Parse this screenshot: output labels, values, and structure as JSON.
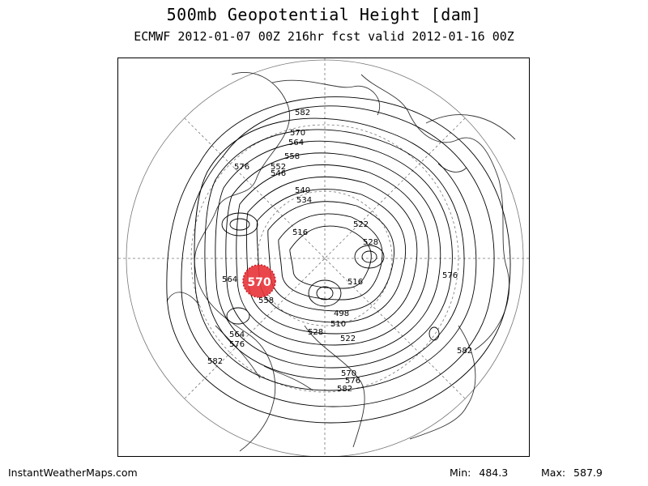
{
  "header": {
    "title": "500mb Geopotential Height [dam]",
    "subtitle": "ECMWF 2012-01-07 00Z 216hr fcst valid 2012-01-16 00Z"
  },
  "footer": {
    "site": "InstantWeatherMaps.com",
    "min_label": "Min:",
    "min_value": "484.3",
    "max_label": "Max:",
    "max_value": "587.9"
  },
  "highlight": {
    "value": "570",
    "color": "#e8333a"
  },
  "contour_labels": [
    "582",
    "570",
    "564",
    "558",
    "552",
    "546",
    "540",
    "534",
    "576",
    "516",
    "522",
    "528",
    "516",
    "498",
    "510",
    "528",
    "522",
    "576",
    "582",
    "564",
    "558",
    "564",
    "576",
    "582",
    "570",
    "576",
    "582"
  ],
  "colors": {
    "contour": "#000000",
    "geography": "#333333",
    "highlight": "#e8333a"
  }
}
